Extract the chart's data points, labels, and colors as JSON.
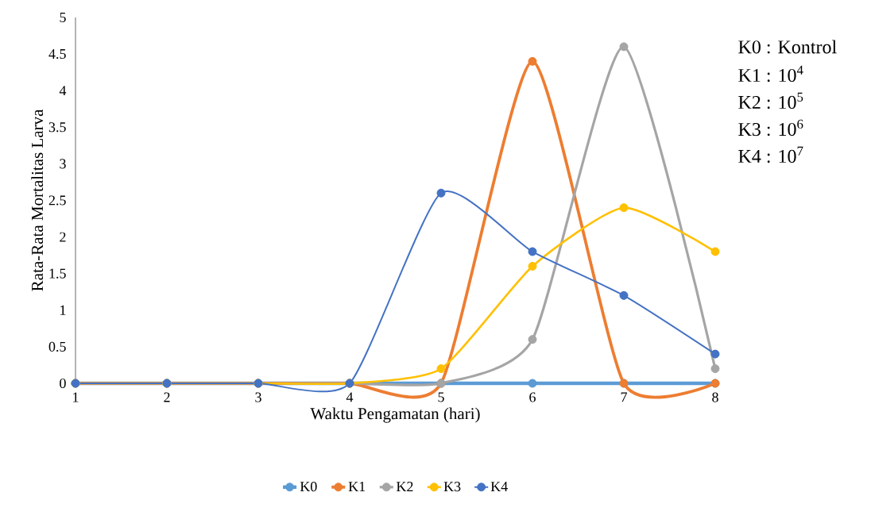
{
  "chart_data": {
    "type": "line",
    "xlabel": "Waktu Pengamatan (hari)",
    "ylabel": "Rata-Rata Mortalitas Larva",
    "categories": [
      "1",
      "2",
      "3",
      "4",
      "5",
      "6",
      "7",
      "8"
    ],
    "ylim": [
      0,
      5
    ],
    "yticks": [
      0,
      0.5,
      1,
      1.5,
      2,
      2.5,
      3,
      3.5,
      4,
      4.5,
      5
    ],
    "series": [
      {
        "name": "K0",
        "color": "#5b9bd5",
        "values": [
          0,
          0,
          0,
          0,
          0,
          0,
          0,
          0
        ]
      },
      {
        "name": "K1",
        "color": "#ed7d31",
        "values": [
          0,
          0,
          0,
          0,
          0,
          4.4,
          0,
          0
        ]
      },
      {
        "name": "K2",
        "color": "#a5a5a5",
        "values": [
          0,
          0,
          0,
          0,
          0,
          0.6,
          4.6,
          0.2
        ]
      },
      {
        "name": "K3",
        "color": "#ffc000",
        "values": [
          0,
          0,
          0,
          0,
          0.2,
          1.6,
          2.4,
          1.8
        ]
      },
      {
        "name": "K4",
        "color": "#4472c4",
        "values": [
          0,
          0,
          0,
          0,
          2.6,
          1.8,
          1.2,
          0.4
        ]
      }
    ],
    "annotations": [
      "K0 : Kontrol",
      "K1 : 10$^{4}$",
      "K2 : 10$^{5}$",
      "K3 : 10$^{6}$",
      "K4 : 10$^{7}$"
    ],
    "legend": "bottom",
    "marker": "circle",
    "line_style": "solid",
    "grid": false
  }
}
